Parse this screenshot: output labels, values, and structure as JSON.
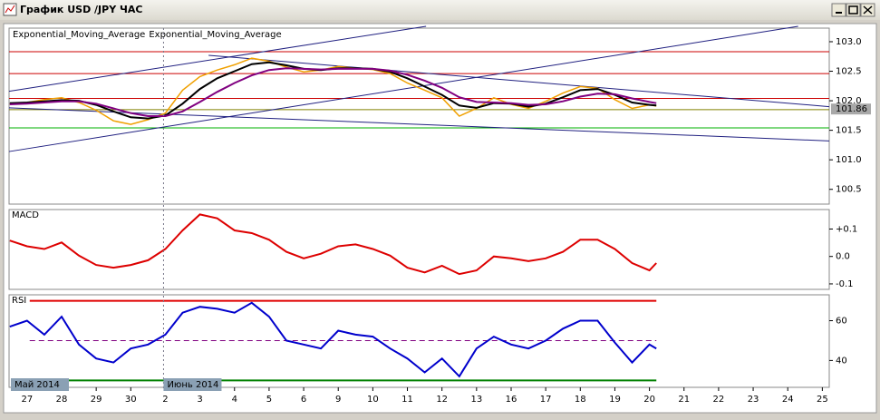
{
  "window": {
    "title": "График USD /JPY  ЧАС"
  },
  "chart_data": [
    {
      "type": "line",
      "title": null,
      "x": [
        -0.5,
        0,
        0.5,
        1,
        1.5,
        2,
        2.5,
        3,
        3.5,
        4,
        4.5,
        5,
        5.5,
        6,
        6.5,
        7,
        7.5,
        8,
        8.5,
        9,
        9.5,
        10,
        10.5,
        11,
        11.5,
        12,
        12.5,
        13,
        13.5,
        14,
        14.5,
        15,
        15.5,
        16,
        16.5,
        17,
        17.5,
        18,
        18.2
      ],
      "xlim": [
        -0.52,
        23.2
      ],
      "ylim": [
        100.25,
        103.23
      ],
      "yticks": [
        {
          "value": 103,
          "label": "103.0"
        },
        {
          "value": 102.5,
          "label": "102.5"
        },
        {
          "value": 102,
          "label": "102.0"
        },
        {
          "value": 101.5,
          "label": "101.5"
        },
        {
          "value": 101,
          "label": "101.0"
        },
        {
          "value": 100.5,
          "label": "100.5"
        }
      ],
      "series": [
        {
          "color": "#f0a000",
          "values": [
            101.94,
            101.97,
            102.02,
            102.05,
            101.97,
            101.84,
            101.66,
            101.6,
            101.68,
            101.79,
            102.18,
            102.41,
            102.52,
            102.61,
            102.72,
            102.67,
            102.57,
            102.49,
            102.52,
            102.58,
            102.55,
            102.53,
            102.46,
            102.3,
            102.18,
            102.05,
            101.74,
            101.87,
            102.05,
            101.94,
            101.87,
            101.99,
            102.13,
            102.24,
            102.21,
            102.02,
            101.87,
            101.93,
            101.91
          ]
        },
        {
          "name": "Exponential_Moving_Average",
          "color": "#000000",
          "values": [
            101.96,
            101.97,
            101.99,
            102.01,
            102,
            101.93,
            101.82,
            101.72,
            101.7,
            101.75,
            101.95,
            102.2,
            102.38,
            102.5,
            102.62,
            102.65,
            102.6,
            102.54,
            102.52,
            102.55,
            102.55,
            102.54,
            102.49,
            102.38,
            102.24,
            102.1,
            101.92,
            101.88,
            101.96,
            101.95,
            101.9,
            101.95,
            102.06,
            102.18,
            102.2,
            102.1,
            101.97,
            101.93,
            101.92
          ]
        },
        {
          "name": "Exponential_Moving_Average",
          "color": "#800080",
          "values": [
            101.94,
            101.95,
            101.97,
            101.99,
            101.99,
            101.95,
            101.87,
            101.79,
            101.74,
            101.74,
            101.82,
            101.98,
            102.15,
            102.3,
            102.43,
            102.52,
            102.55,
            102.54,
            102.53,
            102.54,
            102.54,
            102.54,
            102.51,
            102.44,
            102.34,
            102.22,
            102.06,
            101.98,
            101.97,
            101.96,
            101.93,
            101.94,
            101.99,
            102.07,
            102.12,
            102.11,
            102.04,
            101.98,
            101.96
          ]
        }
      ],
      "levels": [
        {
          "value": 102.83,
          "color": "#cc0000"
        },
        {
          "value": 102.46,
          "color": "#cc0000"
        },
        {
          "value": 102.04,
          "color": "#cc0000"
        },
        {
          "value": 101.85,
          "color": "#808000"
        },
        {
          "value": 101.54,
          "color": "#00b000"
        }
      ],
      "trend_color": "#202080",
      "trend_lines": [
        {
          "x": [
            -0.52,
            11.54
          ],
          "values": [
            102.16,
            103.26
          ]
        },
        {
          "x": [
            -0.52,
            22.3
          ],
          "values": [
            101.14,
            103.26
          ]
        },
        {
          "x": [
            5.25,
            23.2
          ],
          "values": [
            102.77,
            101.9
          ]
        },
        {
          "x": [
            -0.52,
            23.2
          ],
          "values": [
            101.88,
            101.32
          ]
        }
      ],
      "current_price": 101.86
    },
    {
      "type": "line",
      "title": "MACD",
      "x": [
        -0.5,
        0,
        0.5,
        1,
        1.5,
        2,
        2.5,
        3,
        3.5,
        4,
        4.5,
        5,
        5.5,
        6,
        6.5,
        7,
        7.5,
        8,
        8.5,
        9,
        9.5,
        10,
        10.5,
        11,
        11.5,
        12,
        12.5,
        13,
        13.5,
        14,
        14.5,
        15,
        15.5,
        16,
        16.5,
        17,
        17.5,
        18,
        18.2
      ],
      "xlim": [
        -0.52,
        23.2
      ],
      "ylim": [
        -0.12,
        0.171
      ],
      "yticks": [
        {
          "value": 0.1,
          "label": "+0.1"
        },
        {
          "value": 0,
          "label": "0.0"
        },
        {
          "value": -0.1,
          "label": "-0.1"
        }
      ],
      "series": [
        {
          "color": "#dd0000",
          "values": [
            0.058,
            0.037,
            0.027,
            0.051,
            0.003,
            -0.031,
            -0.041,
            -0.031,
            -0.014,
            0.027,
            0.095,
            0.153,
            0.139,
            0.095,
            0.085,
            0.061,
            0.017,
            -0.007,
            0.01,
            0.037,
            0.044,
            0.027,
            0.003,
            -0.041,
            -0.058,
            -0.034,
            -0.064,
            -0.051,
            0,
            -0.007,
            -0.017,
            -0.007,
            0.017,
            0.061,
            0.061,
            0.027,
            -0.024,
            -0.051,
            -0.024
          ]
        }
      ]
    },
    {
      "type": "line",
      "title": "RSI",
      "x": [
        -0.5,
        0,
        0.5,
        1,
        1.5,
        2,
        2.5,
        3,
        3.5,
        4,
        4.5,
        5,
        5.5,
        6,
        6.5,
        7,
        7.5,
        8,
        8.5,
        9,
        9.5,
        10,
        10.5,
        11,
        11.5,
        12,
        12.5,
        13,
        13.5,
        14,
        14.5,
        15,
        15.5,
        16,
        16.5,
        17,
        17.5,
        18,
        18.2
      ],
      "xlim": [
        -0.52,
        23.2
      ],
      "ylim": [
        26.5,
        73
      ],
      "yticks": [
        40,
        60
      ],
      "series": [
        {
          "color": "#0000cc",
          "values": [
            57,
            60,
            53,
            62,
            48,
            41,
            39,
            46,
            48,
            53,
            64,
            67,
            66,
            64,
            69,
            62,
            50,
            48,
            46,
            55,
            53,
            52,
            46,
            41,
            34,
            41,
            32,
            46,
            52,
            48,
            46,
            50,
            56,
            60,
            60,
            49,
            39,
            48,
            46
          ]
        }
      ],
      "levels": [
        {
          "value": 70,
          "color": "#e00000"
        },
        {
          "value": 50,
          "color": "#800080",
          "dashed": true
        },
        {
          "value": 30,
          "color": "#008000"
        }
      ],
      "xticks": [
        {
          "value": 0,
          "label": "27"
        },
        {
          "value": 1,
          "label": "28"
        },
        {
          "value": 2,
          "label": "29"
        },
        {
          "value": 3,
          "label": "30"
        },
        {
          "value": 4,
          "label": "2"
        },
        {
          "value": 5,
          "label": "3"
        },
        {
          "value": 6,
          "label": "4"
        },
        {
          "value": 7,
          "label": "5"
        },
        {
          "value": 8,
          "label": "6"
        },
        {
          "value": 9,
          "label": "9"
        },
        {
          "value": 10,
          "label": "10"
        },
        {
          "value": 11,
          "label": "11"
        },
        {
          "value": 12,
          "label": "12"
        },
        {
          "value": 13,
          "label": "13"
        },
        {
          "value": 14,
          "label": "16"
        },
        {
          "value": 15,
          "label": "17"
        },
        {
          "value": 16,
          "label": "18"
        },
        {
          "value": 17,
          "label": "19"
        },
        {
          "value": 18,
          "label": "20"
        },
        {
          "value": 19,
          "label": "21"
        },
        {
          "value": 20,
          "label": "22"
        },
        {
          "value": 21,
          "label": "23"
        },
        {
          "value": 22,
          "label": "24"
        },
        {
          "value": 23,
          "label": "25"
        }
      ],
      "periods": [
        "Май 2014",
        "Июнь 2014"
      ]
    }
  ]
}
